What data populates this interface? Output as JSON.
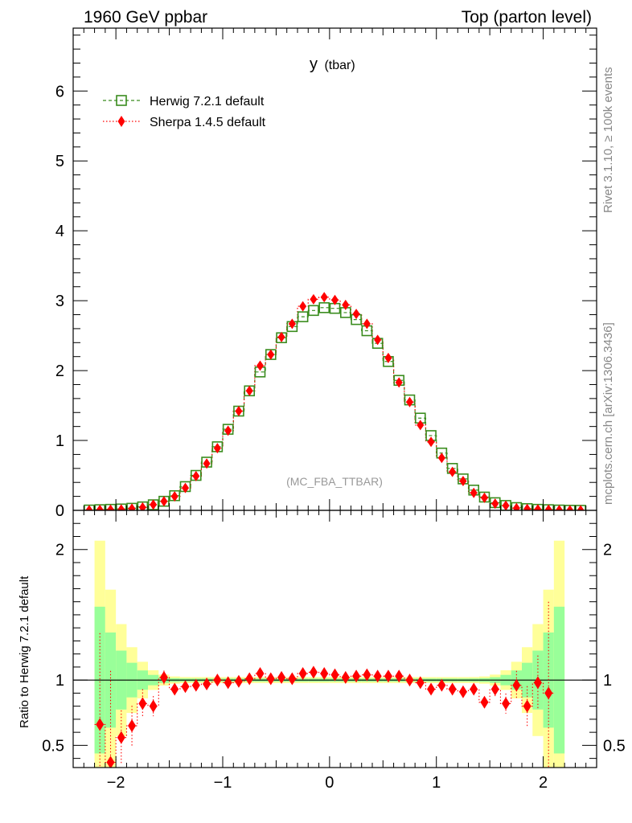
{
  "header": {
    "left": "1960 GeV ppbar",
    "right": "Top (parton level)"
  },
  "side_labels": {
    "rivet": "Rivet 3.1.10, ≥ 100k events",
    "mcplots": "mcplots.cern.ch [arXiv:1306.3436]"
  },
  "main_panel": {
    "title_var": "y",
    "title_sub": "(tbar)",
    "watermark": "(MC_FBA_TTBAR)",
    "legend": [
      {
        "label": "Herwig 7.2.1 default",
        "color": "#3a8c1e",
        "marker": "open-square",
        "line": "dashed"
      },
      {
        "label": "Sherpa 1.4.5 default",
        "color": "#ff0000",
        "marker": "diamond",
        "line": "dotted"
      }
    ]
  },
  "ratio_panel": {
    "ylabel": "Ratio to Herwig 7.2.1 default"
  },
  "chart_data": [
    {
      "type": "line",
      "title": "y (tbar)",
      "xlim": [
        -2.4,
        2.5
      ],
      "ylim": [
        0,
        6.9
      ],
      "x_ticks": [
        "-2",
        "-1",
        "0",
        "1",
        "2"
      ],
      "y_ticks": [
        "0",
        "1",
        "2",
        "3",
        "4",
        "5",
        "6"
      ],
      "x": [
        -2.25,
        -2.15,
        -2.05,
        -1.95,
        -1.85,
        -1.75,
        -1.65,
        -1.55,
        -1.45,
        -1.35,
        -1.25,
        -1.15,
        -1.05,
        -0.95,
        -0.85,
        -0.75,
        -0.65,
        -0.55,
        -0.45,
        -0.35,
        -0.25,
        -0.15,
        -0.05,
        0.05,
        0.15,
        0.25,
        0.35,
        0.45,
        0.55,
        0.65,
        0.75,
        0.85,
        0.95,
        1.05,
        1.15,
        1.25,
        1.35,
        1.45,
        1.55,
        1.65,
        1.75,
        1.85,
        1.95,
        2.05,
        2.15,
        2.25,
        2.35
      ],
      "series": [
        {
          "name": "Herwig 7.2.1 default",
          "values": [
            0.005,
            0.01,
            0.015,
            0.02,
            0.03,
            0.05,
            0.08,
            0.13,
            0.21,
            0.34,
            0.5,
            0.69,
            0.91,
            1.16,
            1.42,
            1.71,
            1.98,
            2.23,
            2.47,
            2.63,
            2.77,
            2.86,
            2.9,
            2.89,
            2.83,
            2.73,
            2.57,
            2.39,
            2.13,
            1.86,
            1.58,
            1.32,
            1.07,
            0.82,
            0.6,
            0.45,
            0.29,
            0.19,
            0.11,
            0.07,
            0.04,
            0.025,
            0.015,
            0.01,
            0.005,
            0.002,
            0.001
          ]
        },
        {
          "name": "Sherpa 1.4.5 default",
          "values": [
            0.003,
            0.007,
            0.0085,
            0.013,
            0.025,
            0.042,
            0.082,
            0.13,
            0.2,
            0.32,
            0.49,
            0.67,
            0.89,
            1.14,
            1.42,
            1.71,
            2.07,
            2.23,
            2.48,
            2.67,
            2.92,
            3.02,
            3.05,
            3.01,
            2.94,
            2.81,
            2.67,
            2.44,
            2.18,
            1.83,
            1.55,
            1.22,
            0.98,
            0.75,
            0.55,
            0.42,
            0.25,
            0.18,
            0.096,
            0.068,
            0.032,
            0.02,
            0.014,
            0.01,
            0.004,
            0.002,
            0.001
          ]
        }
      ]
    },
    {
      "type": "line",
      "title": "",
      "xlim": [
        -2.4,
        2.5
      ],
      "ylim": [
        0.33,
        2.3
      ],
      "ylabel": "Ratio to Herwig 7.2.1 default",
      "x_ticks": [
        "-2",
        "-1",
        "0",
        "1",
        "2"
      ],
      "y_ticks": [
        "0.5",
        "1",
        "2"
      ],
      "x": [
        -2.15,
        -2.05,
        -1.95,
        -1.85,
        -1.75,
        -1.65,
        -1.55,
        -1.45,
        -1.35,
        -1.25,
        -1.15,
        -1.05,
        -0.95,
        -0.85,
        -0.75,
        -0.65,
        -0.55,
        -0.45,
        -0.35,
        -0.25,
        -0.15,
        -0.05,
        0.05,
        0.15,
        0.25,
        0.35,
        0.45,
        0.55,
        0.65,
        0.75,
        0.85,
        0.95,
        1.05,
        1.15,
        1.25,
        1.35,
        1.45,
        1.55,
        1.65,
        1.75,
        1.85,
        1.95,
        2.05
      ],
      "series": [
        {
          "name": "Sherpa 1.4.5 default",
          "values": [
            0.66,
            0.37,
            0.56,
            0.65,
            0.82,
            0.8,
            1.02,
            0.93,
            0.95,
            0.96,
            0.97,
            1.0,
            0.98,
            0.99,
            1.01,
            1.05,
            1.01,
            1.02,
            1.01,
            1.05,
            1.06,
            1.05,
            1.04,
            1.02,
            1.03,
            1.04,
            1.03,
            1.03,
            1.03,
            1.0,
            0.98,
            0.93,
            0.96,
            0.93,
            0.91,
            0.93,
            0.83,
            0.93,
            0.82,
            0.96,
            0.8,
            0.98,
            0.9
          ]
        }
      ]
    }
  ]
}
